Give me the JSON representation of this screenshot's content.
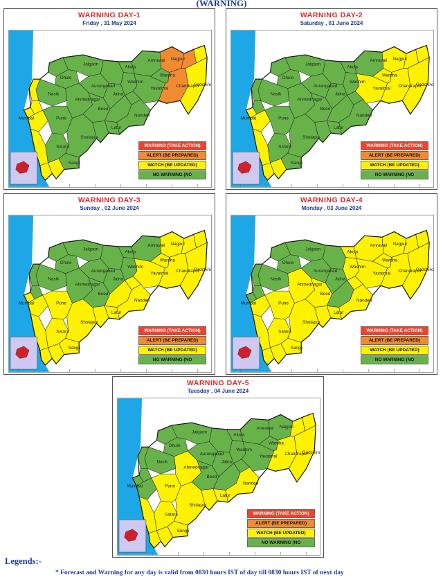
{
  "header": {
    "title": "(WARNING)"
  },
  "colors": {
    "warning": "#f0432d",
    "alert": "#f28b30",
    "watch": "#fff200",
    "no_warning": "#67b34a",
    "sea": "#1ea7e6",
    "inset": "#cfc8f0"
  },
  "legend": {
    "warning": "WARNING (TAKE ACTION)",
    "alert": "ALERT (BE PREPARED)",
    "watch": "WATCH (BE UPDATED)",
    "no_warning": "NO WARNING (NO"
  },
  "days": [
    {
      "title": "WARNING DAY-1",
      "date": "Friday , 31 May 2024",
      "districts": {
        "palghar": "yellow",
        "thane": "yellow",
        "mumbai": "yellow",
        "raigad": "yellow",
        "ratnagiri": "yellow",
        "sindhudurg": "yellow",
        "kolhapur": "yellow",
        "nashik": "green",
        "ahmednagar": "green",
        "pune": "green",
        "satara": "green",
        "sangli": "green",
        "solapur": "green",
        "osmanabad": "green",
        "latur": "green",
        "beed": "green",
        "aurangabad": "green",
        "jalna": "green",
        "parbhani": "green",
        "hingoli": "green",
        "nanded": "green",
        "jalgaon": "green",
        "dhule": "green",
        "nandurbar": "green",
        "buldhana": "green",
        "akola": "green",
        "washim": "green",
        "amravati": "green",
        "yavatmal": "green",
        "wardha": "green",
        "nagpur": "orange",
        "bhandara": "orange",
        "gondia": "yellow",
        "chandrapur": "orange",
        "gadchiroli": "yellow"
      }
    },
    {
      "title": "WARNING DAY-2",
      "date": "Saturday , 01 June 2024",
      "districts": {
        "palghar": "green",
        "thane": "green",
        "mumbai": "yellow",
        "raigad": "yellow",
        "ratnagiri": "yellow",
        "sindhudurg": "yellow",
        "kolhapur": "yellow",
        "nashik": "green",
        "ahmednagar": "green",
        "pune": "green",
        "satara": "green",
        "sangli": "green",
        "solapur": "green",
        "osmanabad": "green",
        "latur": "green",
        "beed": "green",
        "aurangabad": "green",
        "jalna": "green",
        "parbhani": "green",
        "hingoli": "green",
        "nanded": "green",
        "jalgaon": "green",
        "dhule": "green",
        "nandurbar": "green",
        "buldhana": "green",
        "akola": "green",
        "washim": "green",
        "amravati": "green",
        "yavatmal": "yellow",
        "wardha": "yellow",
        "nagpur": "yellow",
        "bhandara": "yellow",
        "gondia": "yellow",
        "chandrapur": "yellow",
        "gadchiroli": "yellow"
      }
    },
    {
      "title": "WARNING DAY-3",
      "date": "Sunday , 02 June 2024",
      "districts": {
        "palghar": "green",
        "thane": "green",
        "mumbai": "yellow",
        "raigad": "yellow",
        "ratnagiri": "yellow",
        "sindhudurg": "yellow",
        "kolhapur": "yellow",
        "nashik": "green",
        "ahmednagar": "green",
        "pune": "yellow",
        "satara": "yellow",
        "sangli": "yellow",
        "solapur": "yellow",
        "osmanabad": "yellow",
        "latur": "yellow",
        "beed": "green",
        "aurangabad": "green",
        "jalna": "green",
        "parbhani": "yellow",
        "hingoli": "yellow",
        "nanded": "yellow",
        "jalgaon": "green",
        "dhule": "green",
        "nandurbar": "green",
        "buldhana": "green",
        "akola": "green",
        "washim": "green",
        "amravati": "green",
        "yavatmal": "yellow",
        "wardha": "yellow",
        "nagpur": "yellow",
        "bhandara": "yellow",
        "gondia": "yellow",
        "chandrapur": "yellow",
        "gadchiroli": "yellow"
      }
    },
    {
      "title": "WARNING DAY-4",
      "date": "Monday , 03 June 2024",
      "districts": {
        "palghar": "green",
        "thane": "green",
        "mumbai": "green",
        "raigad": "yellow",
        "ratnagiri": "yellow",
        "sindhudurg": "yellow",
        "kolhapur": "yellow",
        "nashik": "green",
        "ahmednagar": "yellow",
        "pune": "yellow",
        "satara": "yellow",
        "sangli": "yellow",
        "solapur": "yellow",
        "osmanabad": "yellow",
        "latur": "yellow",
        "beed": "yellow",
        "aurangabad": "green",
        "jalna": "green",
        "parbhani": "green",
        "hingoli": "yellow",
        "nanded": "yellow",
        "jalgaon": "green",
        "dhule": "green",
        "nandurbar": "green",
        "buldhana": "green",
        "akola": "yellow",
        "washim": "yellow",
        "amravati": "yellow",
        "yavatmal": "yellow",
        "wardha": "yellow",
        "nagpur": "yellow",
        "bhandara": "yellow",
        "gondia": "yellow",
        "chandrapur": "yellow",
        "gadchiroli": "yellow"
      }
    },
    {
      "title": "WARNING DAY-5",
      "date": "Tuesday , 04 June 2024",
      "districts": {
        "palghar": "green",
        "thane": "green",
        "mumbai": "green",
        "raigad": "green",
        "ratnagiri": "yellow",
        "sindhudurg": "yellow",
        "kolhapur": "yellow",
        "nashik": "green",
        "ahmednagar": "yellow",
        "pune": "yellow",
        "satara": "yellow",
        "sangli": "yellow",
        "solapur": "yellow",
        "osmanabad": "yellow",
        "latur": "yellow",
        "beed": "green",
        "aurangabad": "green",
        "jalna": "green",
        "parbhani": "green",
        "hingoli": "green",
        "nanded": "yellow",
        "jalgaon": "green",
        "dhule": "green",
        "nandurbar": "green",
        "buldhana": "green",
        "akola": "green",
        "washim": "green",
        "amravati": "green",
        "yavatmal": "green",
        "wardha": "green",
        "nagpur": "green",
        "bhandara": "yellow",
        "gondia": "yellow",
        "chandrapur": "yellow",
        "gadchiroli": "yellow"
      }
    }
  ],
  "district_labels": {
    "nashik": "Nasik",
    "dhule": "Dhule",
    "jalgaon": "Jalgaon",
    "amravati": "Amravati",
    "nagpur": "Nagpur",
    "akola": "Akola",
    "washim": "Washim",
    "wardha": "Wardha",
    "yavatmal": "Yavatmal",
    "chandrapur": "Chandrapur",
    "gadchiroli": "Gadchiroli",
    "aurangabad": "Aurangabad",
    "jalna": "Jalna",
    "ahmednagar": "Ahmednagar",
    "beed": "Beed",
    "hingoli": "Hingoli",
    "nanded": "Nanded",
    "pune": "Pune",
    "mumbai": "Mumbai",
    "palghar": "Palghar",
    "satara": "Satara",
    "solapur": "Sholapur",
    "latur": "Latur",
    "sangli": "Sangli"
  },
  "legends_heading": "Legends:-",
  "footnote": "* Forecast and Warning for any day is valid from 0830 hours IST of day till 0830 hours IST of next day"
}
